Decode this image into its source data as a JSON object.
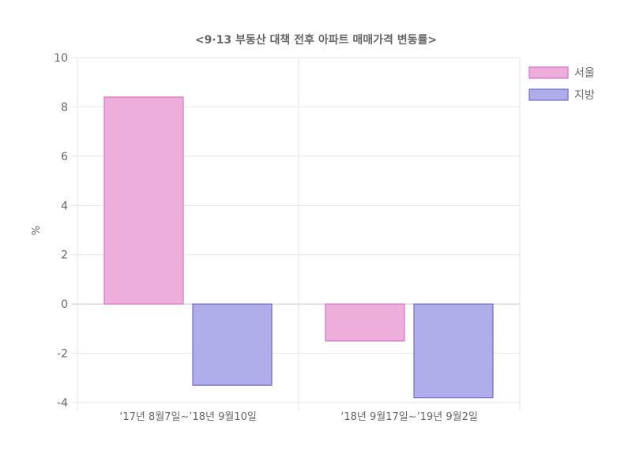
{
  "chart_data": {
    "type": "bar",
    "title": "<9·13 부동산 대책 전후 아파트 매매가격 변동률>",
    "xlabel": "",
    "ylabel": "%",
    "categories": [
      "‘17년 8월7일~’18년 9월10일",
      "‘18년 9월17일~’19년 9월2일"
    ],
    "series": [
      {
        "name": "서울",
        "values": [
          8.4,
          -1.5
        ],
        "fill": "#eeaedc",
        "stroke": "#d873c4"
      },
      {
        "name": "지방",
        "values": [
          -3.3,
          -3.8
        ],
        "fill": "#b0aeea",
        "stroke": "#6e6bc4"
      }
    ],
    "ylim": [
      -4,
      10
    ],
    "yticks": [
      10,
      8,
      6,
      4,
      2,
      0,
      -2,
      -4
    ],
    "grid": true,
    "legend": "top-right"
  }
}
